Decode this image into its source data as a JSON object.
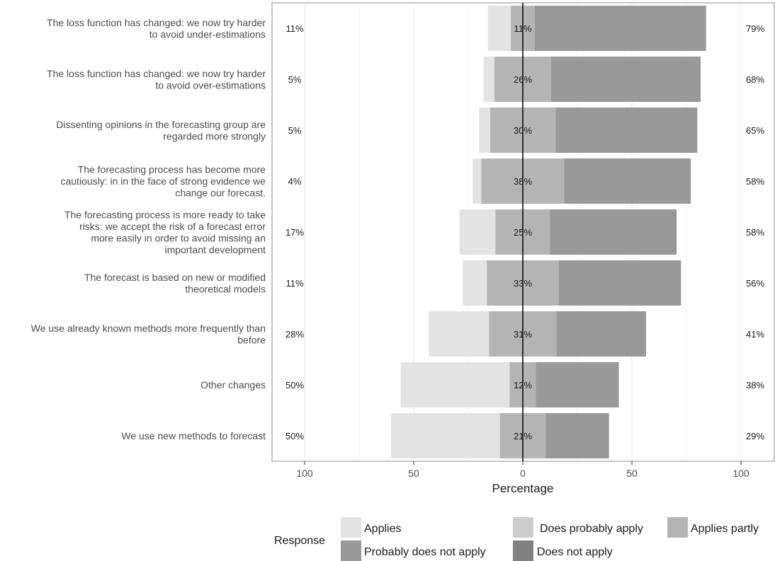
{
  "chart_data": {
    "type": "bar",
    "xlabel": "Percentage",
    "xlim": [
      -100,
      100
    ],
    "x_ticks": [
      {
        "value": -100,
        "label": "100"
      },
      {
        "value": -50,
        "label": "50"
      },
      {
        "value": 0,
        "label": "0"
      },
      {
        "value": 50,
        "label": "50"
      },
      {
        "value": 100,
        "label": "100"
      }
    ],
    "grid": true,
    "legend": {
      "title": "Response",
      "position": "bottom",
      "entries": [
        "Applies",
        "Does probably apply",
        "Applies partly",
        "Probably does not apply",
        "Does not apply"
      ]
    },
    "colors": {
      "left_segment": "#e3e3e3",
      "left_inner_segment": "#cdcdcd",
      "center_segment": "#b4b4b4",
      "right_segment": "#999999",
      "legend_swatches": [
        "#e3e3e3",
        "#cdcdcd",
        "#b4b4b4",
        "#999999",
        "#808080"
      ]
    },
    "categories": [
      {
        "label": [
          "The loss function has changed: we now try harder",
          "to avoid under-estimations"
        ],
        "segments": [
          -16,
          -5.5,
          5.5,
          84
        ],
        "left_pct": "11%",
        "center_pct": "11%",
        "right_pct": "79%"
      },
      {
        "label": [
          "The loss function has changed: we now try harder",
          "to avoid over-estimations"
        ],
        "segments": [
          -18,
          -13,
          13,
          81.5
        ],
        "left_pct": "5%",
        "center_pct": "26%",
        "right_pct": "68%"
      },
      {
        "label": [
          "Dissenting opinions in the forecasting group are",
          "regarded more strongly"
        ],
        "segments": [
          -20,
          -15,
          15,
          80
        ],
        "left_pct": "5%",
        "center_pct": "30%",
        "right_pct": "65%"
      },
      {
        "label": [
          "The forecasting process has become more",
          "cautiously: in in the face of strong evidence we",
          "change our forecast."
        ],
        "segments": [
          -23,
          -19,
          19,
          77
        ],
        "left_pct": "4%",
        "center_pct": "38%",
        "right_pct": "58%"
      },
      {
        "label": [
          "The forecasting process is more ready to take",
          "risks: we accept the risk of a forecast error",
          "more easily in order to avoid missing an",
          "important development"
        ],
        "segments": [
          -29,
          -12.5,
          12.5,
          70.5
        ],
        "left_pct": "17%",
        "center_pct": "25%",
        "right_pct": "58%"
      },
      {
        "label": [
          "The forecast is based on new or modified",
          "theoretical models"
        ],
        "segments": [
          -27.5,
          -16.5,
          16.5,
          72.5
        ],
        "left_pct": "11%",
        "center_pct": "33%",
        "right_pct": "56%"
      },
      {
        "label": [
          "We use already known methods more frequently than",
          "before"
        ],
        "segments": [
          -43,
          -15.5,
          15.5,
          56.5
        ],
        "left_pct": "28%",
        "center_pct": "31%",
        "right_pct": "41%"
      },
      {
        "label": [
          "Other changes"
        ],
        "segments": [
          -56,
          -6,
          6,
          44
        ],
        "left_pct": "50%",
        "center_pct": "12%",
        "right_pct": "38%"
      },
      {
        "label": [
          "We use new methods to forecast"
        ],
        "segments": [
          -60.5,
          -10.5,
          10.5,
          39.5
        ],
        "left_pct": "50%",
        "center_pct": "21%",
        "right_pct": "29%"
      }
    ]
  }
}
